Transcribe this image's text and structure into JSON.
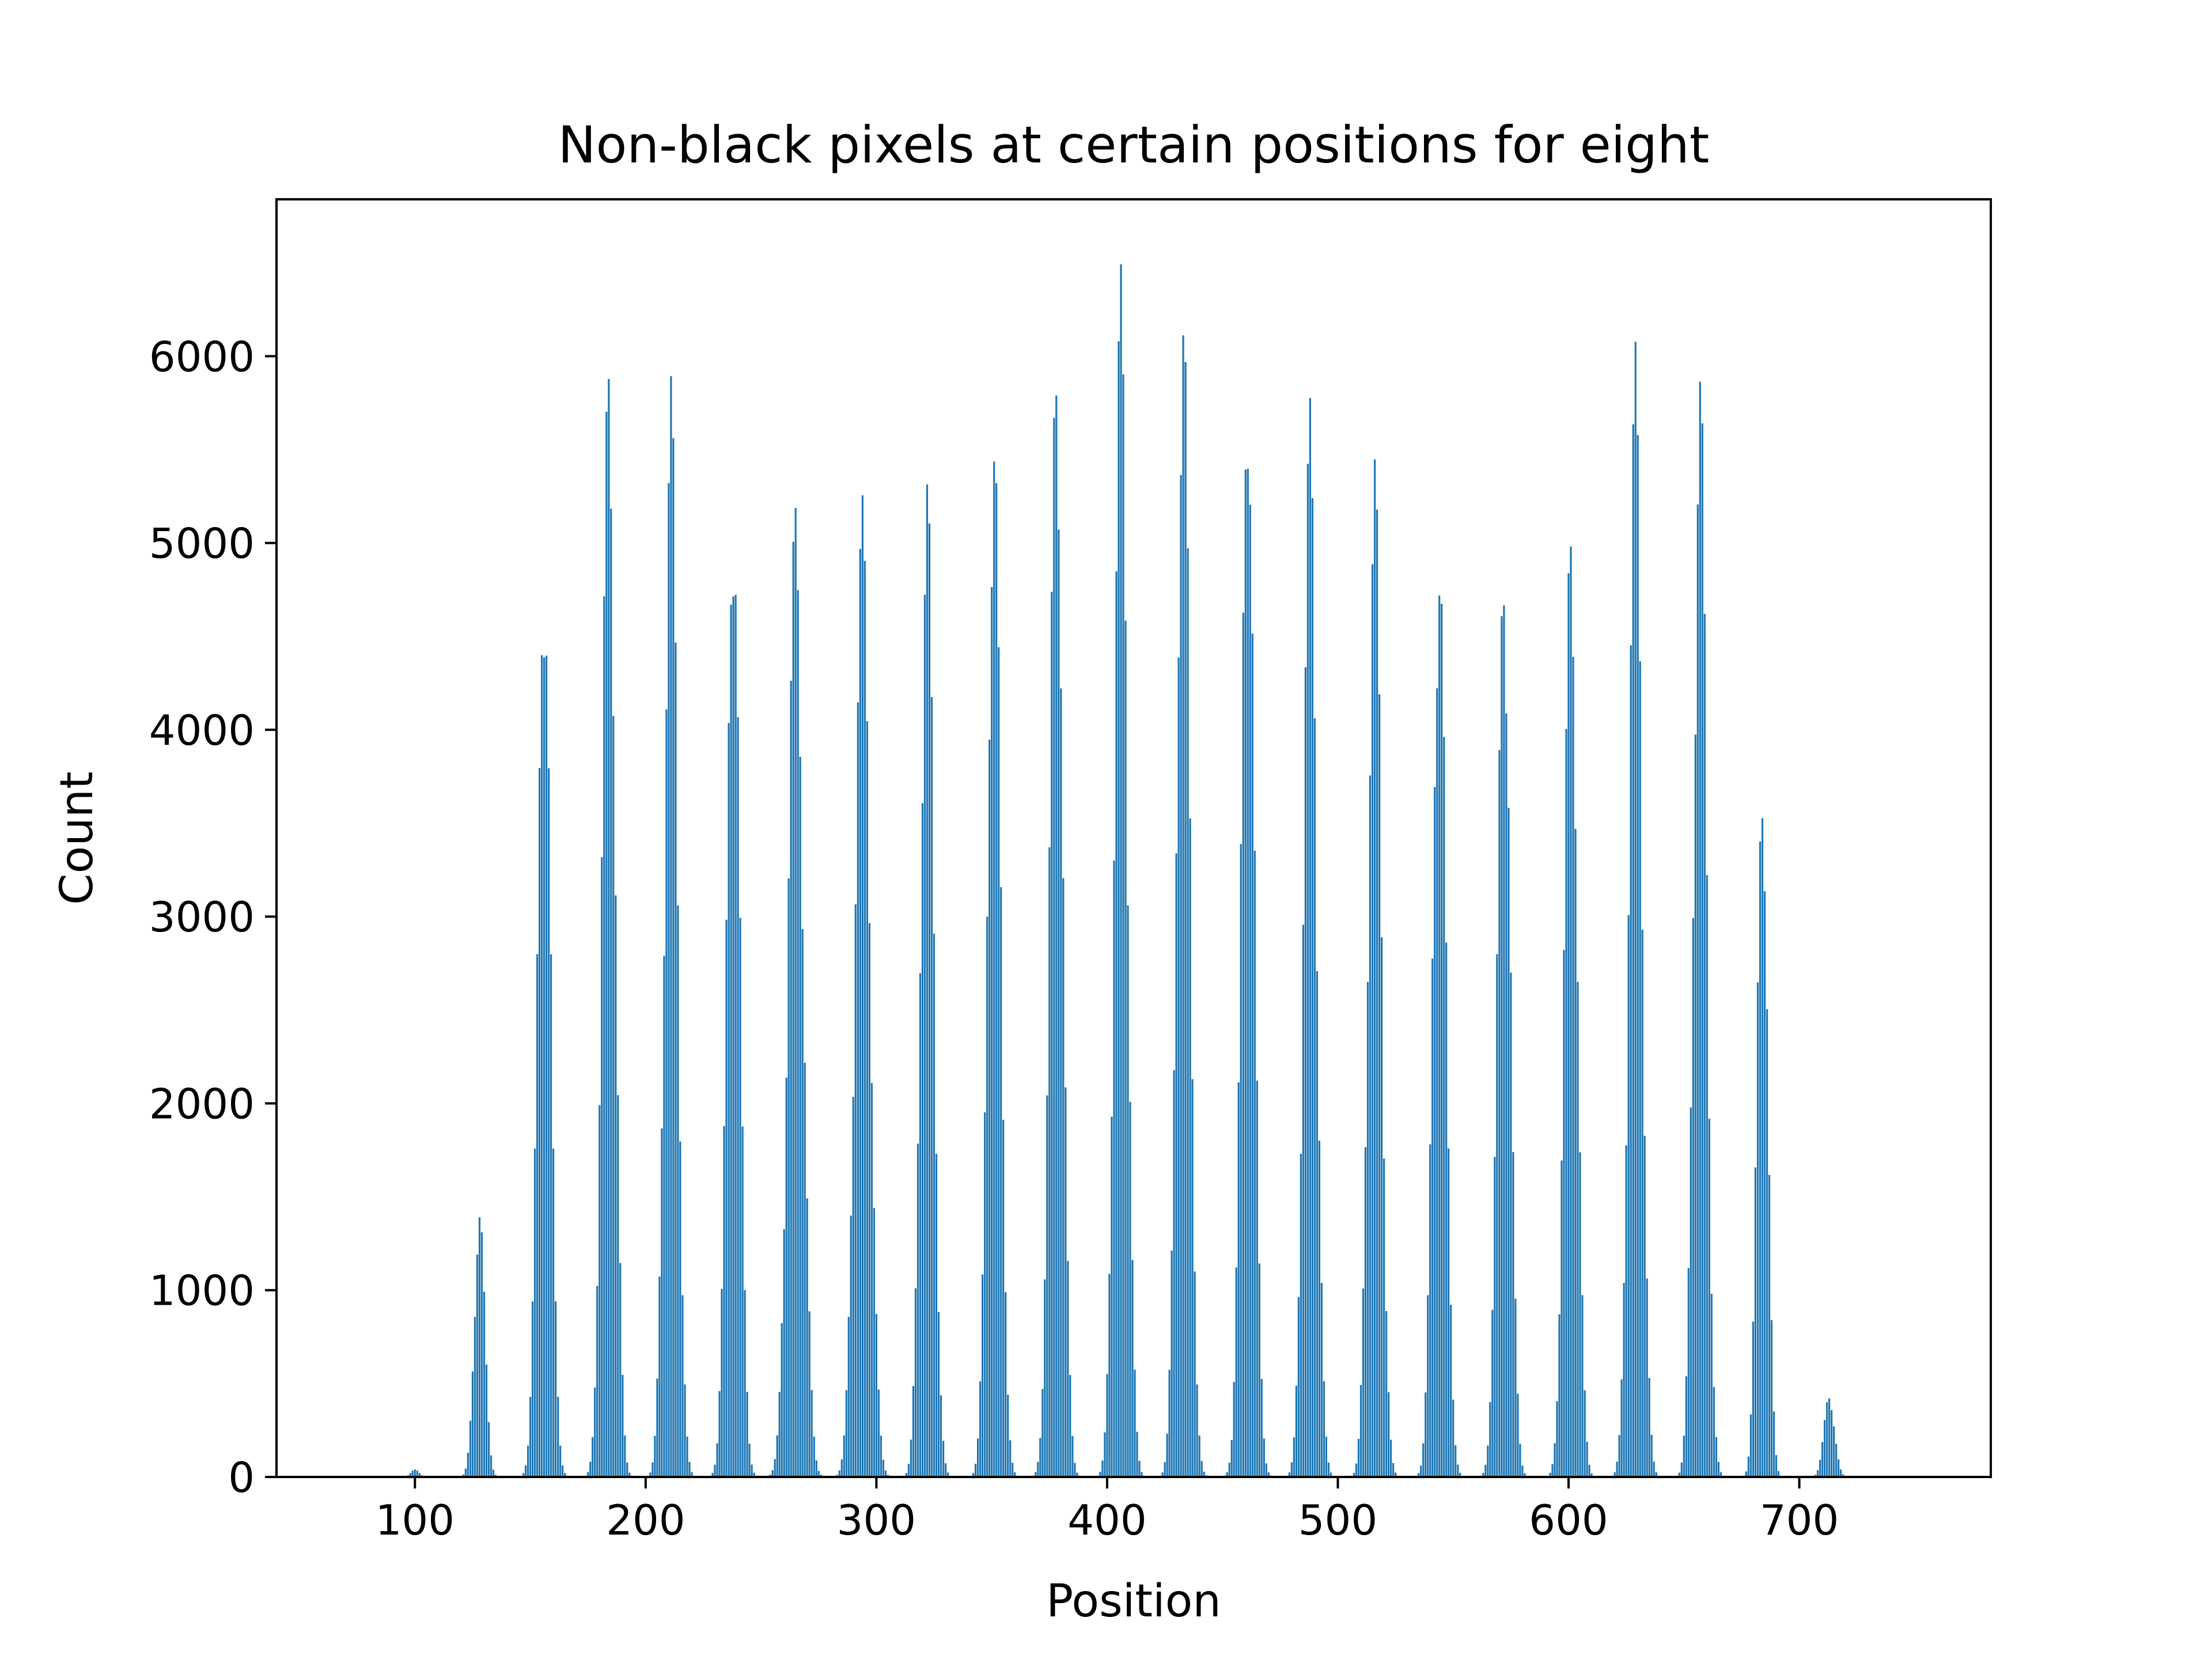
{
  "chart_data": {
    "type": "bar",
    "title": "Non-black pixels at certain positions for eight",
    "xlabel": "Position",
    "ylabel": "Count",
    "xlim": [
      40,
      783
    ],
    "ylim": [
      0,
      6840
    ],
    "x_ticks": [
      100,
      200,
      300,
      400,
      500,
      600,
      700
    ],
    "y_ticks": [
      0,
      1000,
      2000,
      3000,
      4000,
      5000,
      6000
    ],
    "color": "#1f77b4",
    "grid": false,
    "legend": "none",
    "clusters": [
      {
        "center": 100,
        "peak": 40,
        "width": 4
      },
      {
        "center": 128,
        "peak": 1460,
        "width": 5
      },
      {
        "center": 156,
        "peak": 5160,
        "width": 6
      },
      {
        "center": 184,
        "peak": 6170,
        "width": 6
      },
      {
        "center": 211,
        "peak": 5950,
        "width": 6
      },
      {
        "center": 238,
        "peak": 5510,
        "width": 6
      },
      {
        "center": 265,
        "peak": 5260,
        "width": 7
      },
      {
        "center": 294,
        "peak": 5260,
        "width": 7
      },
      {
        "center": 322,
        "peak": 5480,
        "width": 6
      },
      {
        "center": 351,
        "peak": 5820,
        "width": 6
      },
      {
        "center": 378,
        "peak": 6210,
        "width": 6
      },
      {
        "center": 406,
        "peak": 6520,
        "width": 6
      },
      {
        "center": 433,
        "peak": 6510,
        "width": 6
      },
      {
        "center": 461,
        "peak": 6220,
        "width": 6
      },
      {
        "center": 488,
        "peak": 5810,
        "width": 6
      },
      {
        "center": 516,
        "peak": 5540,
        "width": 6
      },
      {
        "center": 544,
        "peak": 5240,
        "width": 6
      },
      {
        "center": 572,
        "peak": 5130,
        "width": 6
      },
      {
        "center": 601,
        "peak": 5240,
        "width": 6
      },
      {
        "center": 629,
        "peak": 6080,
        "width": 6
      },
      {
        "center": 657,
        "peak": 6060,
        "width": 6
      },
      {
        "center": 684,
        "peak": 3960,
        "width": 5
      },
      {
        "center": 713,
        "peak": 450,
        "width": 5
      }
    ]
  }
}
